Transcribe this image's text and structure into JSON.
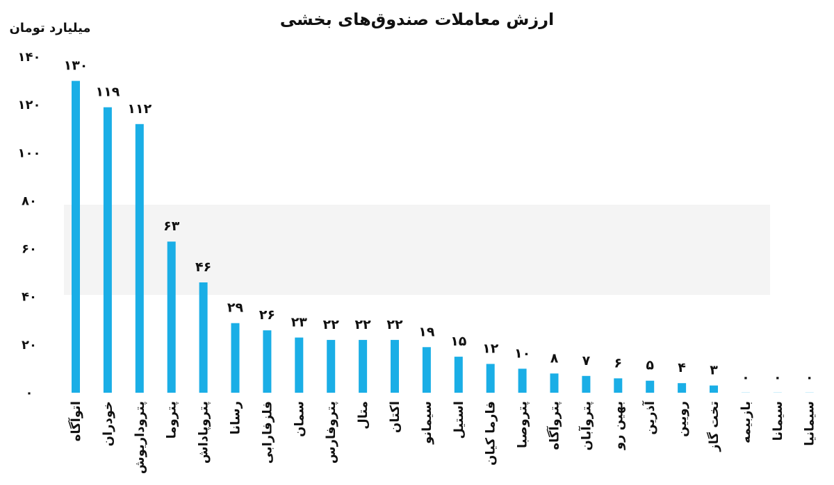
{
  "chart_data": {
    "type": "bar",
    "title": "ارزش معاملات صندوق‌های بخشی",
    "ylabel": "میلیارد تومان",
    "ylim": [
      0,
      140
    ],
    "yticks": [
      "٠",
      "٢٠",
      "۴٠",
      "۶٠",
      "٨٠",
      "١٠٠",
      "١٢٠",
      "١۴٠"
    ],
    "grid": false,
    "bar_color": "#1aaee6",
    "categories": [
      "اتوآگاه",
      "خودران",
      "پتروداریوش",
      "پتروما",
      "پتروپاداش",
      "رسانا",
      "فلزفارابی",
      "سمان",
      "پتروفارس",
      "متال",
      "اکتان",
      "سیمانو",
      "استیل",
      "فارما کیان",
      "پتروصبا",
      "پتروآگاه",
      "پتروآبان",
      "بهین رو",
      "آذرین",
      "رویین",
      "تخت گاز",
      "بازبیمه",
      "سیمانا",
      "سیمانیا"
    ],
    "values": [
      130,
      119,
      112,
      63,
      46,
      29,
      26,
      23,
      22,
      22,
      22,
      19,
      15,
      12,
      10,
      8,
      7,
      6,
      5,
      4,
      3,
      0,
      0,
      0
    ],
    "value_labels": [
      "١٣٠",
      "١١٩",
      "١١٢",
      "۶٣",
      "۴۶",
      "٢٩",
      "٢۶",
      "٢٣",
      "٢٢",
      "٢٢",
      "٢٢",
      "١٩",
      "١۵",
      "١٢",
      "١٠",
      "٨",
      "٧",
      "۶",
      "۵",
      "۴",
      "٣",
      "٠",
      "٠",
      "٠"
    ]
  }
}
